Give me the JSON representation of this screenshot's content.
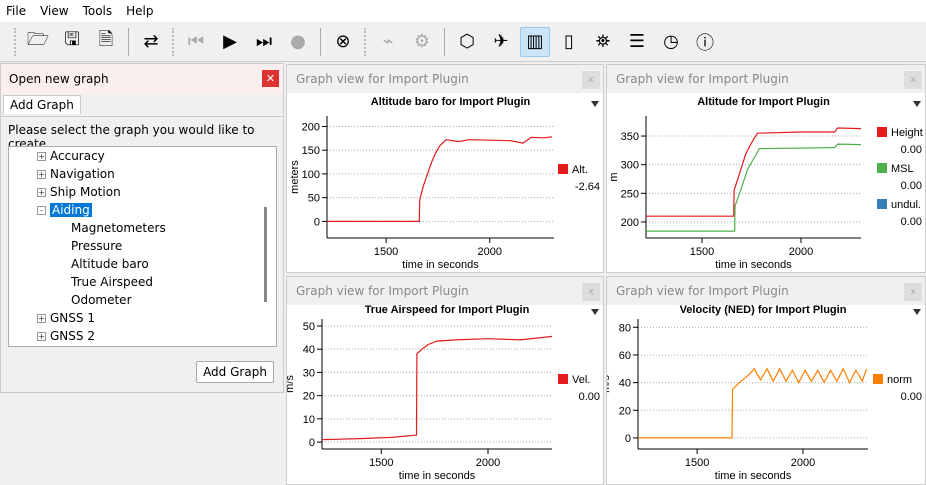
{
  "menu": [
    "File",
    "View",
    "Tools",
    "Help"
  ],
  "toolbar": {
    "groups": [
      [
        "folder-open",
        "save",
        "export-report"
      ],
      [
        "switch-view"
      ],
      [
        "skip-back",
        "play",
        "skip-forward",
        "record"
      ],
      [
        "stop-circle"
      ],
      [
        "plugin",
        "settings"
      ],
      [
        "cube",
        "airplane",
        "bar-chart",
        "map",
        "satellite",
        "checklist",
        "clock",
        "info"
      ]
    ],
    "active": "bar-chart"
  },
  "dialog": {
    "title": "Open new graph",
    "tab": "Add Graph",
    "prompt": "Please select the graph you would like to create.",
    "button": "Add Graph",
    "tree": [
      {
        "label": "Accuracy",
        "level": 0,
        "expand": "+"
      },
      {
        "label": "Navigation",
        "level": 0,
        "expand": "+"
      },
      {
        "label": "Ship Motion",
        "level": 0,
        "expand": "+"
      },
      {
        "label": "Aiding",
        "level": 0,
        "expand": "-",
        "selected": true
      },
      {
        "label": "Magnetometers",
        "level": 1
      },
      {
        "label": "Pressure",
        "level": 1
      },
      {
        "label": "Altitude baro",
        "level": 1
      },
      {
        "label": "True Airspeed",
        "level": 1
      },
      {
        "label": "Odometer",
        "level": 1
      },
      {
        "label": "GNSS 1",
        "level": 0,
        "expand": "+"
      },
      {
        "label": "GNSS 2",
        "level": 0,
        "expand": "+"
      }
    ]
  },
  "panel_title": "Graph view for Import Plugin",
  "chart_data": [
    {
      "type": "line",
      "title": "Altitude baro for Import Plugin",
      "xlabel": "time in seconds",
      "ylabel": "meters",
      "xlim": [
        1215,
        2310
      ],
      "ylim": [
        -35,
        222
      ],
      "xticks": [
        1500,
        2000
      ],
      "yticks": [
        0,
        50,
        100,
        150,
        200
      ],
      "grid": "horizontal dotted",
      "series": [
        {
          "name": "Alt.",
          "value": "-2.64",
          "color": "#e41a1c",
          "points": [
            [
              1215,
              0
            ],
            [
              1400,
              0
            ],
            [
              1660,
              0
            ],
            [
              1662,
              45
            ],
            [
              1680,
              75
            ],
            [
              1700,
              100
            ],
            [
              1720,
              125
            ],
            [
              1740,
              145
            ],
            [
              1760,
              160
            ],
            [
              1790,
              172
            ],
            [
              1850,
              168
            ],
            [
              1900,
              172
            ],
            [
              2000,
              171
            ],
            [
              2100,
              170
            ],
            [
              2160,
              165
            ],
            [
              2200,
              177
            ],
            [
              2260,
              176
            ],
            [
              2300,
              178
            ]
          ]
        }
      ]
    },
    {
      "type": "line",
      "title": "Altitude for Import Plugin",
      "xlabel": "time in seconds",
      "ylabel": "m",
      "xlim": [
        1217,
        2303
      ],
      "ylim": [
        172,
        385
      ],
      "xticks": [
        1500,
        2000
      ],
      "yticks": [
        200,
        250,
        300,
        350
      ],
      "grid": "horizontal dotted",
      "series": [
        {
          "name": "Height",
          "value": "0.00",
          "color": "#e41a1c",
          "points": [
            [
              1217,
              210
            ],
            [
              1660,
              210
            ],
            [
              1662,
              255
            ],
            [
              1690,
              285
            ],
            [
              1720,
              318
            ],
            [
              1750,
              338
            ],
            [
              1780,
              355
            ],
            [
              2000,
              357
            ],
            [
              2170,
              357
            ],
            [
              2185,
              364
            ],
            [
              2303,
              363
            ]
          ]
        },
        {
          "name": "MSL",
          "value": "0.00",
          "color": "#4daf4a",
          "points": [
            [
              1217,
              184
            ],
            [
              1665,
              184
            ],
            [
              1667,
              228
            ],
            [
              1700,
              260
            ],
            [
              1730,
              292
            ],
            [
              1760,
              310
            ],
            [
              1790,
              328
            ],
            [
              2000,
              329
            ],
            [
              2170,
              330
            ],
            [
              2185,
              336
            ],
            [
              2303,
              335
            ]
          ]
        },
        {
          "name": "undul.",
          "value": "0.00",
          "color": "#377eb8",
          "points": []
        }
      ]
    },
    {
      "type": "line",
      "title": "True Airspeed for Import Plugin",
      "xlabel": "time in seconds",
      "ylabel": "m/s",
      "xlim": [
        1222,
        2300
      ],
      "ylim": [
        -3,
        53
      ],
      "xticks": [
        1500,
        2000
      ],
      "yticks": [
        0,
        10,
        20,
        30,
        40,
        50
      ],
      "grid": "horizontal dotted",
      "series": [
        {
          "name": "Vel.",
          "value": "0.00",
          "color": "#e41a1c",
          "points": [
            [
              1222,
              1
            ],
            [
              1400,
              1.5
            ],
            [
              1550,
              2
            ],
            [
              1665,
              3
            ],
            [
              1667,
              38
            ],
            [
              1690,
              40
            ],
            [
              1720,
              42
            ],
            [
              1760,
              43.5
            ],
            [
              1850,
              44
            ],
            [
              2000,
              44.5
            ],
            [
              2150,
              44
            ],
            [
              2250,
              45
            ],
            [
              2300,
              45.5
            ]
          ]
        }
      ]
    },
    {
      "type": "line",
      "title": "Velocity (NED) for Import Plugin",
      "xlabel": "time in seconds",
      "ylabel": "m/s",
      "xlim": [
        1221,
        2307
      ],
      "ylim": [
        -8,
        86
      ],
      "xticks": [
        1500,
        2000
      ],
      "yticks": [
        0,
        20,
        40,
        60,
        80
      ],
      "grid": "horizontal dotted",
      "series": [
        {
          "name": "norm",
          "value": "0.00",
          "color": "#ff7f00",
          "points": [
            [
              1221,
              0
            ],
            [
              1665,
              0
            ],
            [
              1667,
              35
            ],
            [
              1700,
              40
            ],
            [
              1740,
              45
            ],
            [
              1770,
              50
            ],
            [
              1800,
              42
            ],
            [
              1830,
              50
            ],
            [
              1860,
              41
            ],
            [
              1890,
              50
            ],
            [
              1920,
              41
            ],
            [
              1950,
              49
            ],
            [
              1980,
              40
            ],
            [
              2010,
              49
            ],
            [
              2040,
              41
            ],
            [
              2070,
              49
            ],
            [
              2100,
              40
            ],
            [
              2130,
              49
            ],
            [
              2160,
              41
            ],
            [
              2190,
              50
            ],
            [
              2220,
              40
            ],
            [
              2250,
              49
            ],
            [
              2280,
              41
            ],
            [
              2300,
              50
            ]
          ]
        }
      ]
    }
  ]
}
